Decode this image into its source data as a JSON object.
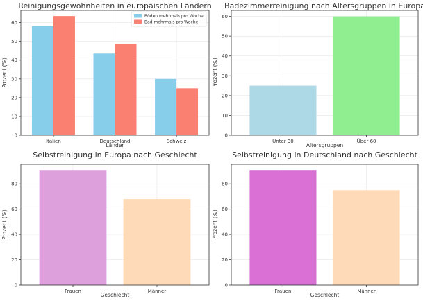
{
  "chart_data": [
    {
      "type": "bar",
      "title": "Reinigungsgewohnheiten in europäischen Ländern",
      "xlabel": "Länder",
      "ylabel": "Prozent (%)",
      "categories": [
        "Italien",
        "Deutschland",
        "Schweiz"
      ],
      "series": [
        {
          "name": "Böden mehrmals pro Woche",
          "values": [
            58,
            43.5,
            30
          ],
          "color": "#87ceeb"
        },
        {
          "name": "Bad mehrmals pro Woche",
          "values": [
            63.5,
            48.5,
            25
          ],
          "color": "#fa8072"
        }
      ],
      "ylim": [
        0,
        66.5
      ],
      "yticks": [
        0,
        10,
        20,
        30,
        40,
        50,
        60
      ],
      "grid": true,
      "legend": "top-right"
    },
    {
      "type": "bar",
      "title": "Badezimmerreinigung nach Altersgruppen in Europa",
      "xlabel": "Altersgruppen",
      "ylabel": "Prozent (%)",
      "categories": [
        "Unter 30",
        "Über 60"
      ],
      "values": [
        25,
        60
      ],
      "colors": [
        "#add8e6",
        "#90ee90"
      ],
      "ylim": [
        0,
        63
      ],
      "yticks": [
        0,
        10,
        20,
        30,
        40,
        50,
        60
      ],
      "grid": true
    },
    {
      "type": "bar",
      "title": "Selbstreinigung in Europa nach Geschlecht",
      "xlabel": "Geschlecht",
      "ylabel": "Prozent (%)",
      "categories": [
        "Frauen",
        "Männer"
      ],
      "values": [
        91,
        68
      ],
      "colors": [
        "#dda0dd",
        "#ffdab9"
      ],
      "ylim": [
        0,
        95.5
      ],
      "yticks": [
        0,
        20,
        40,
        60,
        80
      ],
      "grid": true
    },
    {
      "type": "bar",
      "title": "Selbstreinigung in Deutschland nach Geschlecht",
      "xlabel": "Geschlecht",
      "ylabel": "Prozent (%)",
      "categories": [
        "Frauen",
        "Männer"
      ],
      "values": [
        91,
        75
      ],
      "colors": [
        "#da70d6",
        "#ffdab9"
      ],
      "ylim": [
        0,
        95.5
      ],
      "yticks": [
        0,
        20,
        40,
        60,
        80
      ],
      "grid": true
    }
  ]
}
